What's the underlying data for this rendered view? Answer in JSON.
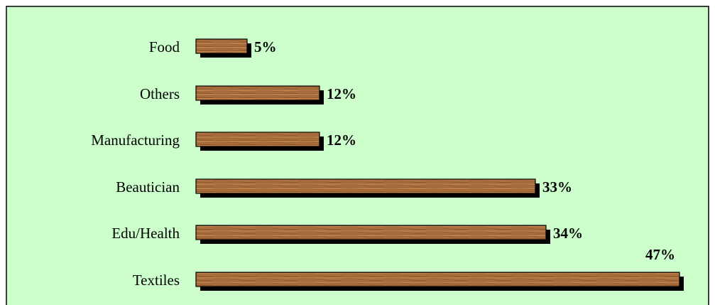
{
  "chart_data": {
    "type": "bar",
    "orientation": "horizontal",
    "categories": [
      "Food",
      "Others",
      "Manufacturing",
      "Beautician",
      "Edu/Health",
      "Textiles"
    ],
    "values": [
      5,
      12,
      12,
      33,
      34,
      47
    ],
    "value_labels": [
      "5%",
      "12%",
      "12%",
      "33%",
      "34%",
      "47%"
    ],
    "xlim": [
      0,
      47
    ],
    "grid": false,
    "legend": "none"
  },
  "colors": {
    "background": "#ccffcc",
    "bar_fill": "#a86a3a",
    "bar_highlight": "#c68a54",
    "bar_shadow": "#000000",
    "border": "#000000"
  }
}
